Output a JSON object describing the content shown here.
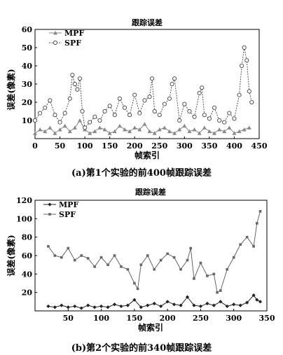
{
  "chart_data": [
    {
      "type": "line",
      "title": "跟踪误差",
      "xlabel": "帧索引",
      "ylabel": "误差(像素)",
      "xlim": [
        0,
        450
      ],
      "ylim": [
        0,
        60
      ],
      "xticks": [
        0,
        50,
        100,
        150,
        200,
        250,
        300,
        350,
        400,
        450
      ],
      "yticks": [
        10,
        20,
        30,
        40,
        50,
        60
      ],
      "legend_position": "top-left",
      "caption": "(a)第1个实验的前400帧跟踪误差",
      "series": [
        {
          "name": "MPF",
          "marker": "triangle",
          "color": "#888888",
          "x": [
            0,
            10,
            20,
            30,
            40,
            50,
            60,
            70,
            80,
            90,
            100,
            110,
            120,
            130,
            140,
            150,
            160,
            170,
            180,
            190,
            200,
            210,
            220,
            230,
            240,
            250,
            260,
            270,
            280,
            290,
            300,
            310,
            320,
            330,
            340,
            350,
            360,
            370,
            380,
            390,
            400,
            410,
            420,
            430
          ],
          "y": [
            3,
            5,
            4,
            6,
            3,
            5,
            7,
            4,
            6,
            10,
            5,
            3,
            4,
            6,
            5,
            3,
            4,
            7,
            5,
            4,
            6,
            5,
            8,
            4,
            3,
            5,
            6,
            4,
            3,
            5,
            7,
            4,
            5,
            3,
            6,
            4,
            3,
            5,
            4,
            6,
            3,
            4,
            5,
            6
          ]
        },
        {
          "name": "SPF",
          "marker": "circle",
          "color": "#555555",
          "x": [
            0,
            10,
            20,
            30,
            40,
            50,
            60,
            70,
            75,
            80,
            85,
            90,
            95,
            100,
            110,
            120,
            130,
            140,
            150,
            160,
            170,
            180,
            190,
            200,
            210,
            220,
            230,
            235,
            240,
            250,
            260,
            270,
            275,
            280,
            290,
            300,
            310,
            320,
            330,
            335,
            340,
            350,
            360,
            370,
            380,
            390,
            400,
            410,
            415,
            420,
            425,
            430,
            435
          ],
          "y": [
            10,
            14,
            17,
            21,
            13,
            9,
            14,
            22,
            35,
            30,
            27,
            33,
            15,
            6,
            9,
            12,
            10,
            15,
            18,
            13,
            22,
            17,
            13,
            24,
            14,
            21,
            23,
            33,
            15,
            13,
            19,
            22,
            30,
            33,
            10,
            19,
            15,
            12,
            25,
            28,
            13,
            11,
            17,
            10,
            9,
            14,
            11,
            24,
            40,
            50,
            43,
            26,
            20
          ]
        }
      ]
    },
    {
      "type": "line",
      "title": "跟踪误差",
      "xlabel": "帧索引",
      "ylabel": "误差(像素)",
      "xlim": [
        0,
        350
      ],
      "ylim": [
        0,
        120
      ],
      "xticks": [
        50,
        100,
        150,
        200,
        250,
        300,
        350
      ],
      "yticks": [
        20,
        40,
        60,
        80,
        100,
        120
      ],
      "legend_position": "top-left",
      "caption": "(b)第2个实验的前340帧跟踪误差",
      "series": [
        {
          "name": "MPF",
          "marker": "diamond",
          "color": "#222222",
          "x": [
            20,
            30,
            40,
            50,
            60,
            70,
            80,
            90,
            100,
            110,
            120,
            130,
            140,
            150,
            160,
            170,
            180,
            190,
            200,
            210,
            220,
            230,
            240,
            250,
            260,
            270,
            280,
            290,
            300,
            310,
            320,
            330,
            335,
            340
          ],
          "y": [
            5,
            4,
            6,
            4,
            5,
            3,
            6,
            4,
            5,
            4,
            7,
            5,
            6,
            12,
            4,
            6,
            8,
            5,
            10,
            7,
            6,
            15,
            6,
            5,
            8,
            6,
            10,
            5,
            7,
            6,
            9,
            17,
            12,
            10
          ]
        },
        {
          "name": "SPF",
          "marker": "square",
          "color": "#666666",
          "x": [
            20,
            30,
            40,
            50,
            60,
            70,
            80,
            90,
            100,
            110,
            120,
            130,
            140,
            150,
            155,
            160,
            170,
            180,
            190,
            200,
            210,
            220,
            230,
            235,
            240,
            250,
            260,
            270,
            275,
            280,
            290,
            300,
            310,
            320,
            330,
            335,
            340
          ],
          "y": [
            70,
            60,
            58,
            68,
            55,
            60,
            57,
            48,
            58,
            50,
            60,
            48,
            45,
            30,
            24,
            50,
            60,
            45,
            55,
            62,
            58,
            45,
            55,
            68,
            35,
            52,
            38,
            40,
            20,
            22,
            45,
            58,
            72,
            80,
            70,
            95,
            108
          ]
        }
      ]
    }
  ]
}
